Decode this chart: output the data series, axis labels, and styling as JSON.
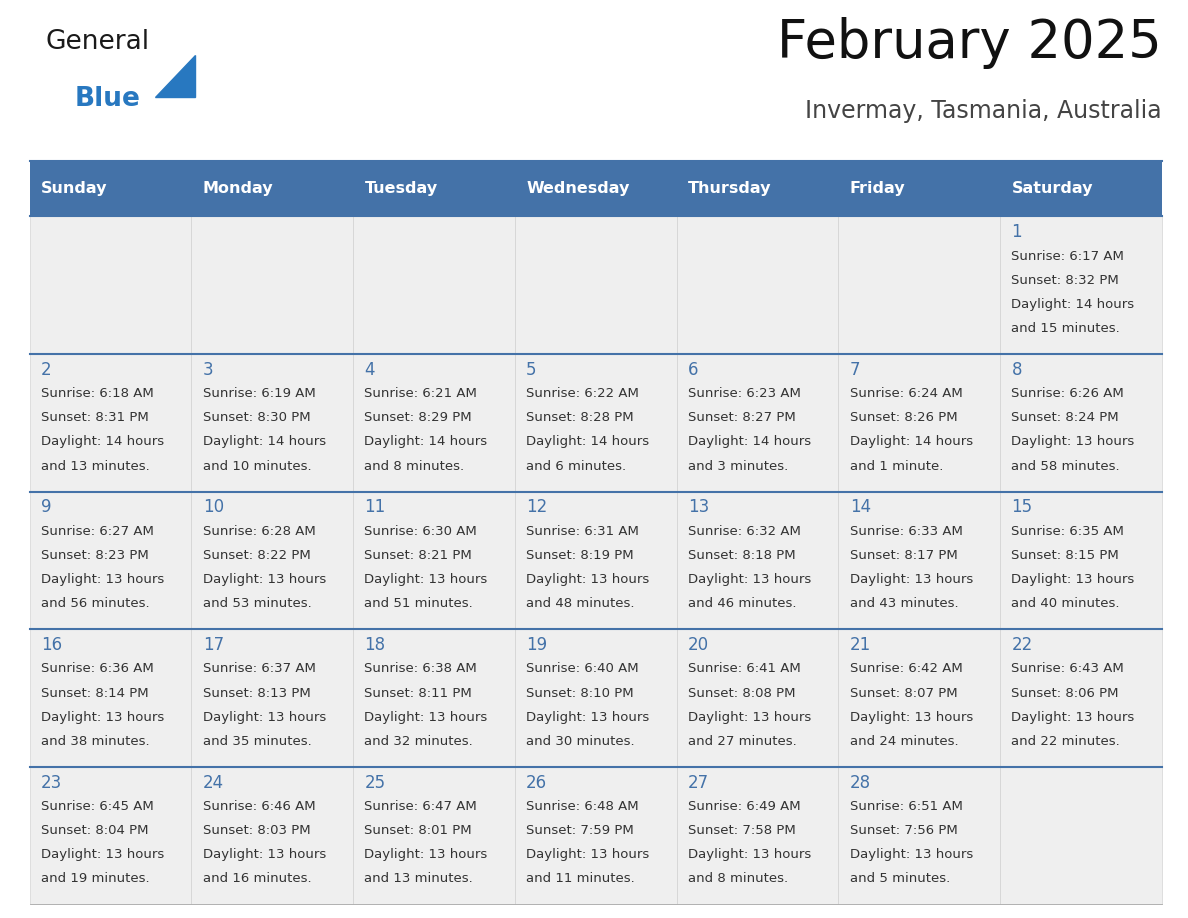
{
  "title": "February 2025",
  "subtitle": "Invermay, Tasmania, Australia",
  "days_of_week": [
    "Sunday",
    "Monday",
    "Tuesday",
    "Wednesday",
    "Thursday",
    "Friday",
    "Saturday"
  ],
  "header_bg": "#4472a8",
  "header_text": "#ffffff",
  "cell_bg_light": "#efefef",
  "border_color": "#4472a8",
  "separator_color": "#4472a8",
  "day_num_color": "#4472a8",
  "text_color": "#333333",
  "calendar_data": [
    [
      null,
      null,
      null,
      null,
      null,
      null,
      {
        "day": 1,
        "sunrise": "6:17 AM",
        "sunset": "8:32 PM",
        "daylight_line1": "Daylight: 14 hours",
        "daylight_line2": "and 15 minutes."
      }
    ],
    [
      {
        "day": 2,
        "sunrise": "6:18 AM",
        "sunset": "8:31 PM",
        "daylight_line1": "Daylight: 14 hours",
        "daylight_line2": "and 13 minutes."
      },
      {
        "day": 3,
        "sunrise": "6:19 AM",
        "sunset": "8:30 PM",
        "daylight_line1": "Daylight: 14 hours",
        "daylight_line2": "and 10 minutes."
      },
      {
        "day": 4,
        "sunrise": "6:21 AM",
        "sunset": "8:29 PM",
        "daylight_line1": "Daylight: 14 hours",
        "daylight_line2": "and 8 minutes."
      },
      {
        "day": 5,
        "sunrise": "6:22 AM",
        "sunset": "8:28 PM",
        "daylight_line1": "Daylight: 14 hours",
        "daylight_line2": "and 6 minutes."
      },
      {
        "day": 6,
        "sunrise": "6:23 AM",
        "sunset": "8:27 PM",
        "daylight_line1": "Daylight: 14 hours",
        "daylight_line2": "and 3 minutes."
      },
      {
        "day": 7,
        "sunrise": "6:24 AM",
        "sunset": "8:26 PM",
        "daylight_line1": "Daylight: 14 hours",
        "daylight_line2": "and 1 minute."
      },
      {
        "day": 8,
        "sunrise": "6:26 AM",
        "sunset": "8:24 PM",
        "daylight_line1": "Daylight: 13 hours",
        "daylight_line2": "and 58 minutes."
      }
    ],
    [
      {
        "day": 9,
        "sunrise": "6:27 AM",
        "sunset": "8:23 PM",
        "daylight_line1": "Daylight: 13 hours",
        "daylight_line2": "and 56 minutes."
      },
      {
        "day": 10,
        "sunrise": "6:28 AM",
        "sunset": "8:22 PM",
        "daylight_line1": "Daylight: 13 hours",
        "daylight_line2": "and 53 minutes."
      },
      {
        "day": 11,
        "sunrise": "6:30 AM",
        "sunset": "8:21 PM",
        "daylight_line1": "Daylight: 13 hours",
        "daylight_line2": "and 51 minutes."
      },
      {
        "day": 12,
        "sunrise": "6:31 AM",
        "sunset": "8:19 PM",
        "daylight_line1": "Daylight: 13 hours",
        "daylight_line2": "and 48 minutes."
      },
      {
        "day": 13,
        "sunrise": "6:32 AM",
        "sunset": "8:18 PM",
        "daylight_line1": "Daylight: 13 hours",
        "daylight_line2": "and 46 minutes."
      },
      {
        "day": 14,
        "sunrise": "6:33 AM",
        "sunset": "8:17 PM",
        "daylight_line1": "Daylight: 13 hours",
        "daylight_line2": "and 43 minutes."
      },
      {
        "day": 15,
        "sunrise": "6:35 AM",
        "sunset": "8:15 PM",
        "daylight_line1": "Daylight: 13 hours",
        "daylight_line2": "and 40 minutes."
      }
    ],
    [
      {
        "day": 16,
        "sunrise": "6:36 AM",
        "sunset": "8:14 PM",
        "daylight_line1": "Daylight: 13 hours",
        "daylight_line2": "and 38 minutes."
      },
      {
        "day": 17,
        "sunrise": "6:37 AM",
        "sunset": "8:13 PM",
        "daylight_line1": "Daylight: 13 hours",
        "daylight_line2": "and 35 minutes."
      },
      {
        "day": 18,
        "sunrise": "6:38 AM",
        "sunset": "8:11 PM",
        "daylight_line1": "Daylight: 13 hours",
        "daylight_line2": "and 32 minutes."
      },
      {
        "day": 19,
        "sunrise": "6:40 AM",
        "sunset": "8:10 PM",
        "daylight_line1": "Daylight: 13 hours",
        "daylight_line2": "and 30 minutes."
      },
      {
        "day": 20,
        "sunrise": "6:41 AM",
        "sunset": "8:08 PM",
        "daylight_line1": "Daylight: 13 hours",
        "daylight_line2": "and 27 minutes."
      },
      {
        "day": 21,
        "sunrise": "6:42 AM",
        "sunset": "8:07 PM",
        "daylight_line1": "Daylight: 13 hours",
        "daylight_line2": "and 24 minutes."
      },
      {
        "day": 22,
        "sunrise": "6:43 AM",
        "sunset": "8:06 PM",
        "daylight_line1": "Daylight: 13 hours",
        "daylight_line2": "and 22 minutes."
      }
    ],
    [
      {
        "day": 23,
        "sunrise": "6:45 AM",
        "sunset": "8:04 PM",
        "daylight_line1": "Daylight: 13 hours",
        "daylight_line2": "and 19 minutes."
      },
      {
        "day": 24,
        "sunrise": "6:46 AM",
        "sunset": "8:03 PM",
        "daylight_line1": "Daylight: 13 hours",
        "daylight_line2": "and 16 minutes."
      },
      {
        "day": 25,
        "sunrise": "6:47 AM",
        "sunset": "8:01 PM",
        "daylight_line1": "Daylight: 13 hours",
        "daylight_line2": "and 13 minutes."
      },
      {
        "day": 26,
        "sunrise": "6:48 AM",
        "sunset": "7:59 PM",
        "daylight_line1": "Daylight: 13 hours",
        "daylight_line2": "and 11 minutes."
      },
      {
        "day": 27,
        "sunrise": "6:49 AM",
        "sunset": "7:58 PM",
        "daylight_line1": "Daylight: 13 hours",
        "daylight_line2": "and 8 minutes."
      },
      {
        "day": 28,
        "sunrise": "6:51 AM",
        "sunset": "7:56 PM",
        "daylight_line1": "Daylight: 13 hours",
        "daylight_line2": "and 5 minutes."
      },
      null
    ]
  ],
  "logo_general_color": "#1a1a1a",
  "logo_blue_color": "#2878c0",
  "logo_triangle_color": "#2878c0",
  "title_fontsize": 38,
  "subtitle_fontsize": 17,
  "header_fontsize": 11.5,
  "day_num_fontsize": 12,
  "cell_text_fontsize": 9.5
}
